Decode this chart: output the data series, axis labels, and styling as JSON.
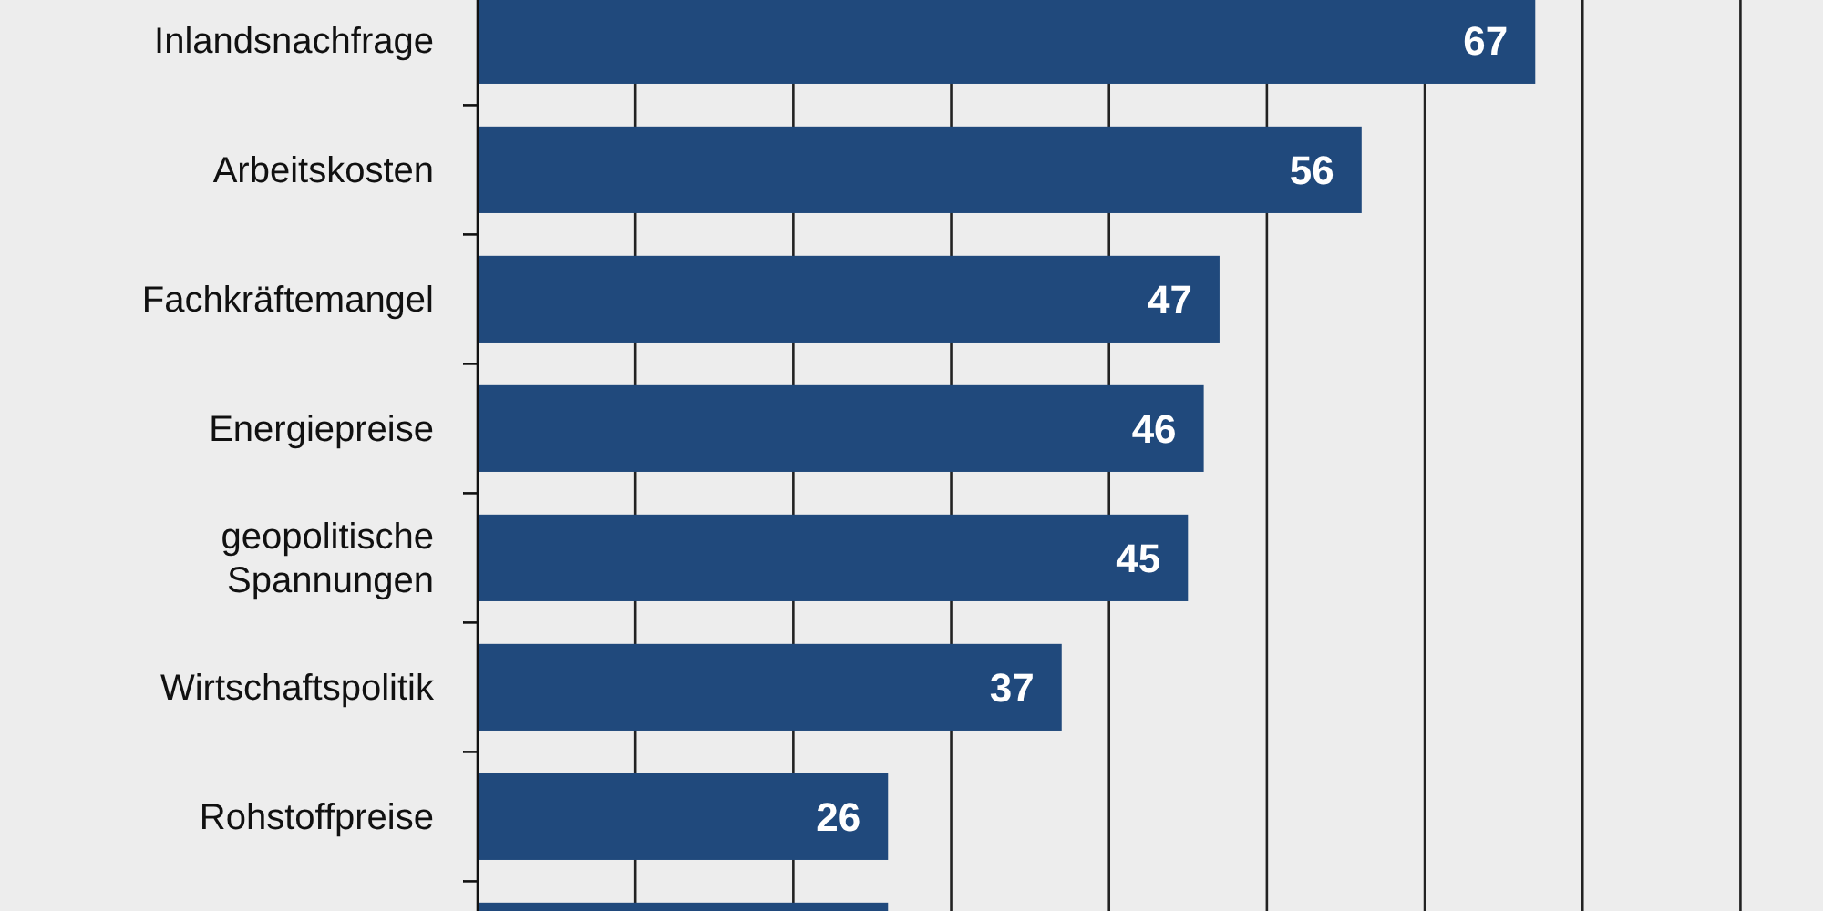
{
  "chart_data": {
    "type": "bar",
    "orientation": "horizontal",
    "categories": [
      "Inlandsnachfrage",
      "Arbeitskosten",
      "Fachkräftemangel",
      "Energiepreise",
      "geopolitische\nSpannungen",
      "Wirtschaftspolitik",
      "Rohstoffpreise",
      null
    ],
    "values": [
      67,
      56,
      47,
      46,
      45,
      37,
      26,
      26
    ],
    "value_labels": [
      "67",
      "56",
      "47",
      "46",
      "45",
      "37",
      "26",
      null
    ],
    "color": "#20497c",
    "xlim": [
      0,
      85
    ],
    "xticks": [
      0,
      10,
      20,
      30,
      40,
      50,
      60,
      70,
      80
    ],
    "grid": "x",
    "tick_labels": "y"
  }
}
